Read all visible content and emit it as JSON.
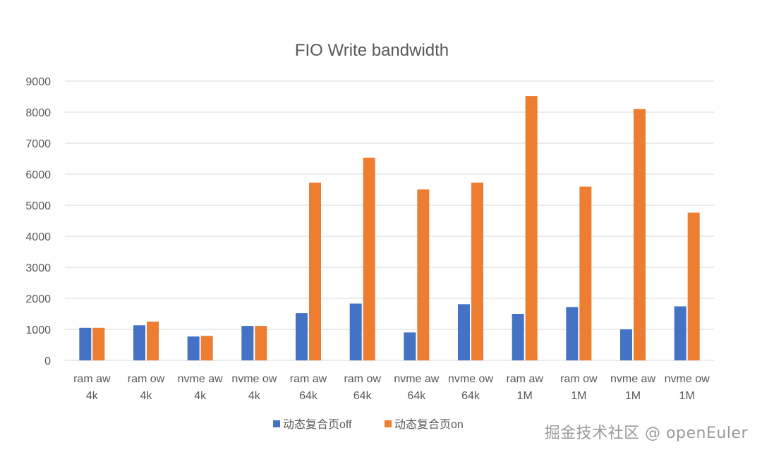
{
  "chart_data": {
    "type": "bar",
    "title": "FIO Write bandwidth",
    "xlabel": "",
    "ylabel": "",
    "ylim": [
      0,
      9000
    ],
    "yticks": [
      0,
      1000,
      2000,
      3000,
      4000,
      5000,
      6000,
      7000,
      8000,
      9000
    ],
    "grid": true,
    "legend_position": "bottom",
    "categories": [
      [
        "ram aw",
        "4k"
      ],
      [
        "ram ow",
        "4k"
      ],
      [
        "nvme aw",
        "4k"
      ],
      [
        "nvme ow",
        "4k"
      ],
      [
        "ram aw",
        "64k"
      ],
      [
        "ram ow",
        "64k"
      ],
      [
        "nvme aw",
        "64k"
      ],
      [
        "nvme ow",
        "64k"
      ],
      [
        "ram aw",
        "1M"
      ],
      [
        "ram ow",
        "1M"
      ],
      [
        "nvme aw",
        "1M"
      ],
      [
        "nvme ow",
        "1M"
      ]
    ],
    "series": [
      {
        "name": "动态复合页off",
        "color": "#4472c4",
        "values": [
          1050,
          1130,
          770,
          1110,
          1520,
          1830,
          900,
          1810,
          1500,
          1720,
          1000,
          1740
        ]
      },
      {
        "name": "动态复合页on",
        "color": "#ed7d31",
        "values": [
          1050,
          1250,
          790,
          1110,
          5730,
          6530,
          5510,
          5730,
          8520,
          5600,
          8100,
          4760
        ]
      }
    ]
  },
  "watermark": "掘金技术社区 @ openEuler"
}
